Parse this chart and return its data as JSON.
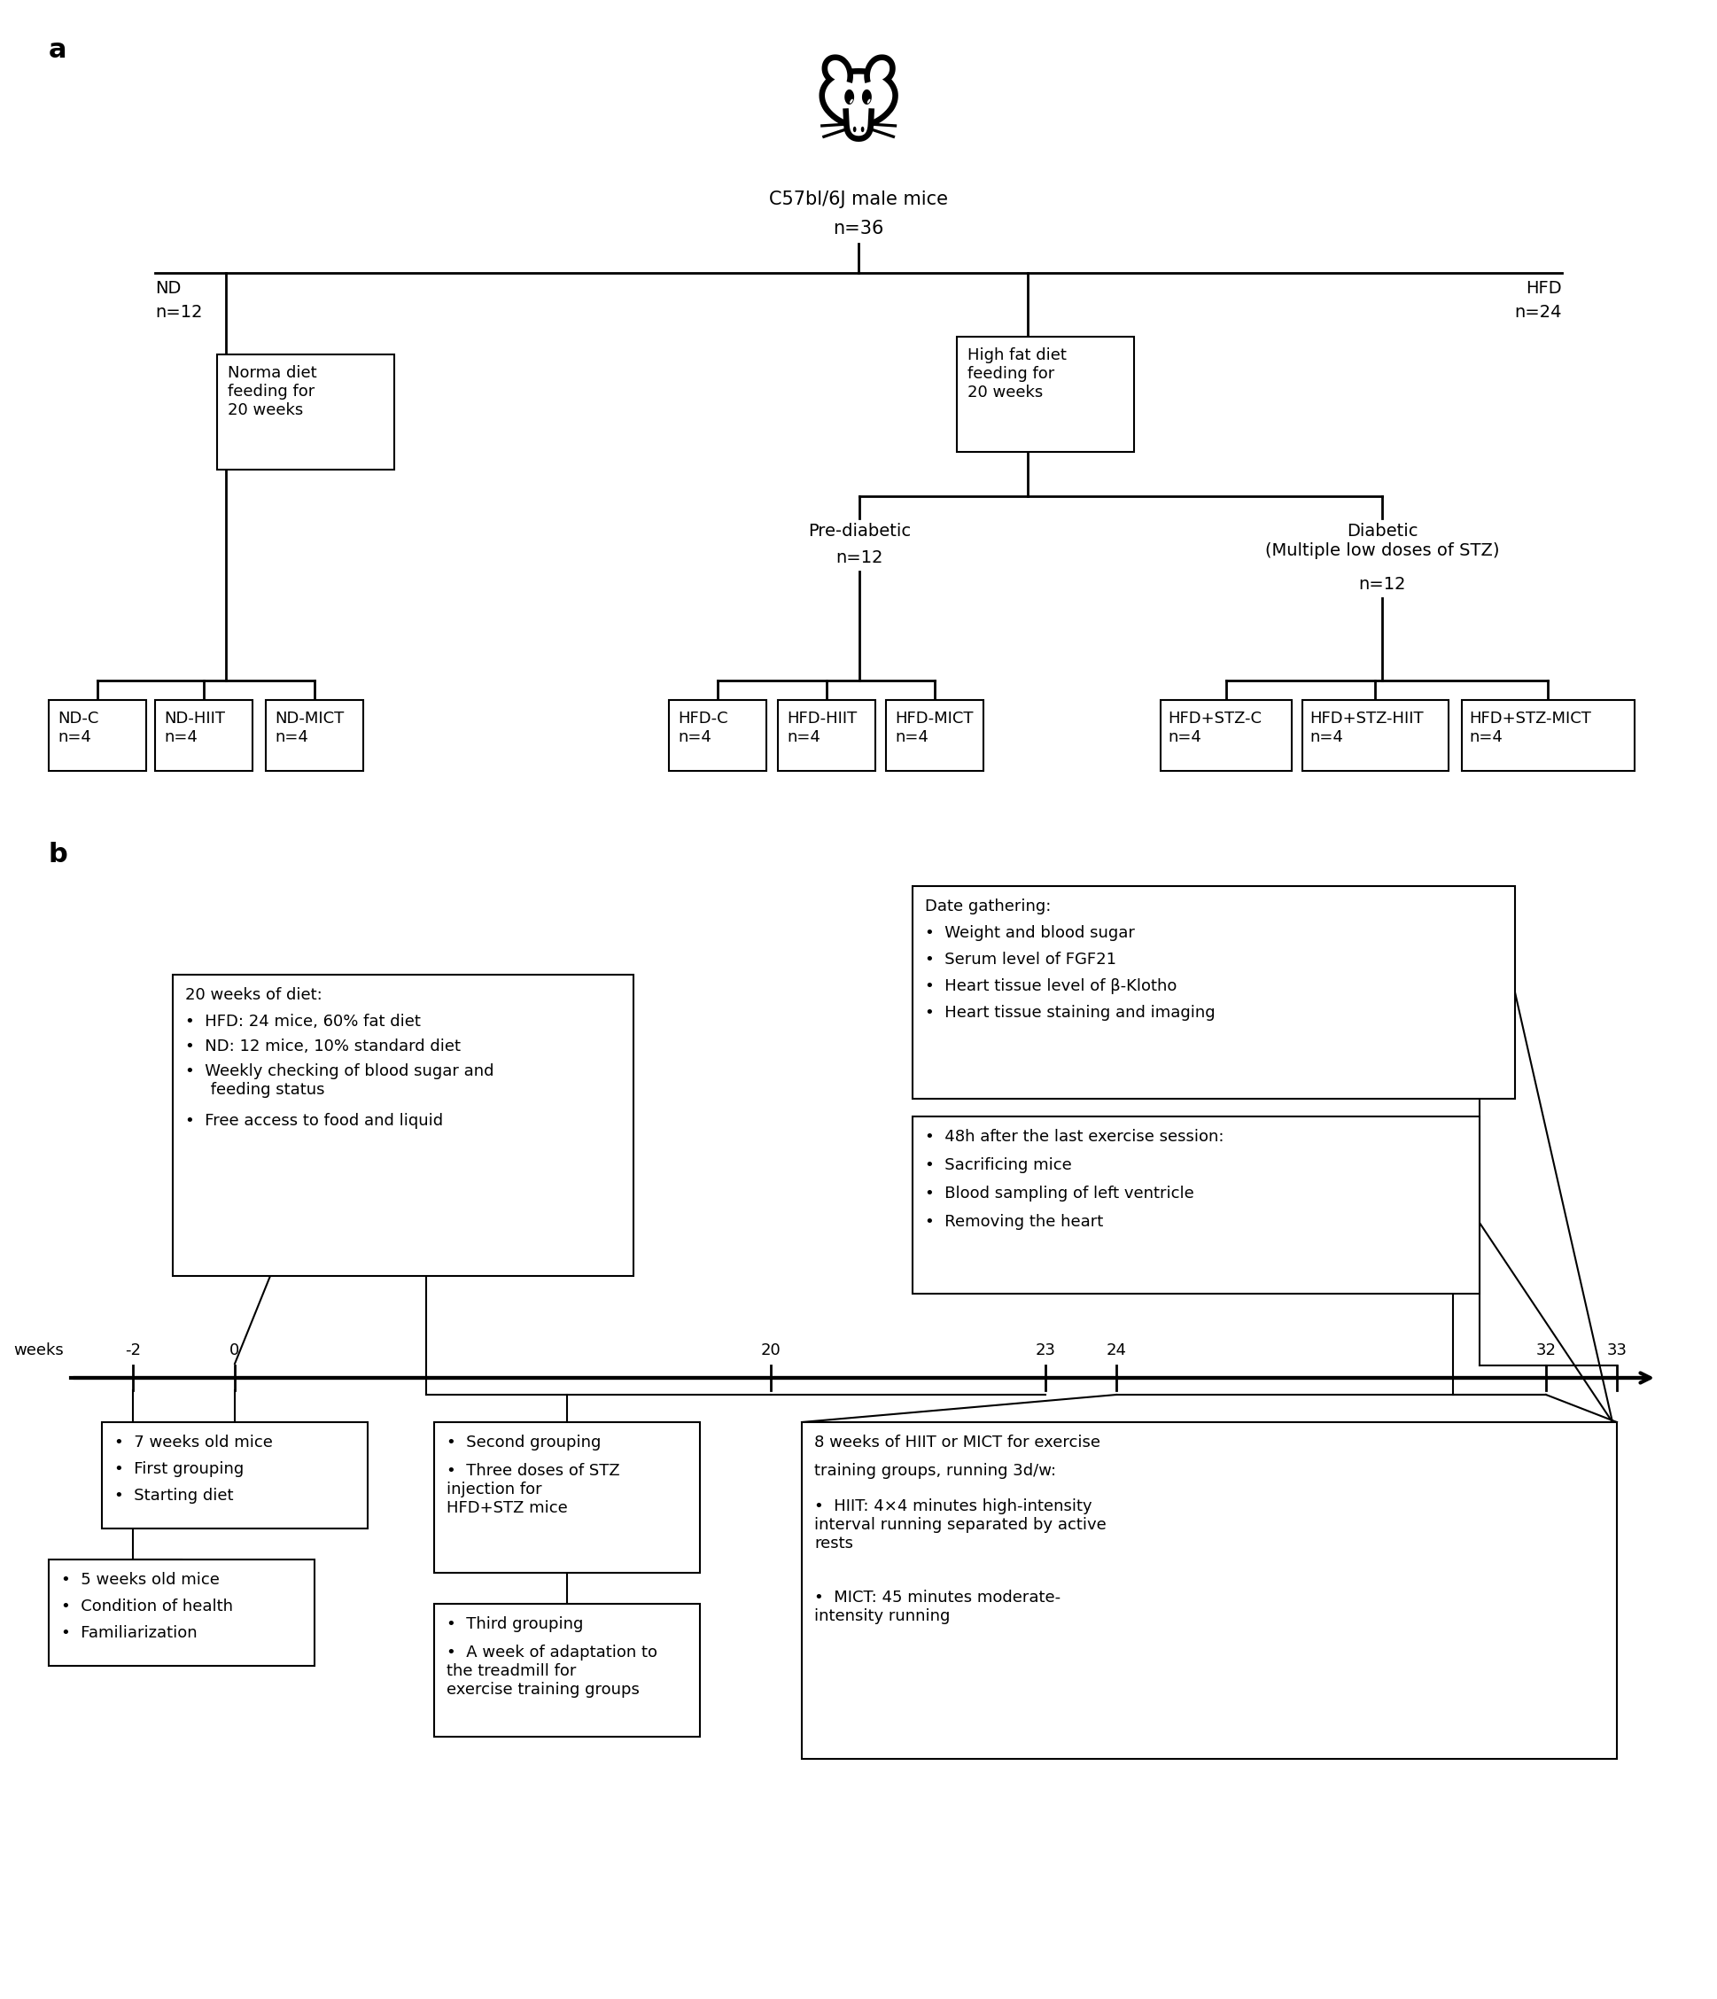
{
  "panel_a_label": "a",
  "panel_b_label": "b",
  "root_label": "C57bl/6J male mice",
  "root_n": "n=36",
  "nd_label": "ND",
  "nd_n": "n=12",
  "hfd_label": "HFD",
  "hfd_n": "n=24",
  "nd_box_text": "Norma diet\nfeeding for\n20 weeks",
  "hfd_box_text": "High fat diet\nfeeding for\n20 weeks",
  "prediab_label": "Pre-diabetic",
  "prediab_n": "n=12",
  "diab_label": "Diabetic\n(Multiple low doses of STZ)",
  "diab_n": "n=12",
  "leaf_boxes": [
    {
      "label": "ND-C\nn=4"
    },
    {
      "label": "ND-HIIT\nn=4"
    },
    {
      "label": "ND-MICT\nn=4"
    },
    {
      "label": "HFD-C\nn=4"
    },
    {
      "label": "HFD-HIIT\nn=4"
    },
    {
      "label": "HFD-MICT\nn=4"
    },
    {
      "label": "HFD+STZ-C\nn=4"
    },
    {
      "label": "HFD+STZ-HIIT\nn=4"
    },
    {
      "label": "HFD+STZ-MICT\nn=4"
    }
  ],
  "box_diet_title": "20 weeks of diet:",
  "box_diet_bullets": [
    "HFD: 24 mice, 60% fat diet",
    "ND: 12 mice, 10% standard diet",
    "Weekly checking of blood sugar and\n     feeding status",
    "Free access to food and liquid"
  ],
  "box_gather_title": "Date gathering:",
  "box_gather_bullets": [
    "Weight and blood sugar",
    "Serum level of FGF21",
    "Heart tissue level of β-Klotho",
    "Heart tissue staining and imaging"
  ],
  "box_sacrifice_bullets": [
    "48h after the last exercise session:",
    "Sacrificing mice",
    "Blood sampling of left ventricle",
    "Removing the heart"
  ],
  "box_bottom_left1_bullets": [
    "7 weeks old mice",
    "First grouping",
    "Starting diet"
  ],
  "box_bottom_left2_bullets": [
    "5 weeks old mice",
    "Condition of health",
    "Familiarization"
  ],
  "box_bottom_mid1_title": "Second grouping",
  "box_bottom_mid1_bullet": "Three doses of STZ\ninjection for\nHFD+STZ mice",
  "box_bottom_mid2_title": "Third grouping",
  "box_bottom_mid2_bullet": "A week of adaptation to\nthe treadmill for\nexercise training groups",
  "box_bottom_right_line1": "8 weeks of HIIT or MICT for exercise",
  "box_bottom_right_line2": "training groups, running 3d/w:",
  "box_bottom_right_hiit": "HIIT: 4×4 minutes high-intensity\ninterval running separated by active\nrests",
  "box_bottom_right_mict": "MICT: 45 minutes moderate-\nintensity running",
  "bg_color": "#ffffff",
  "line_color": "#000000",
  "text_color": "#000000"
}
